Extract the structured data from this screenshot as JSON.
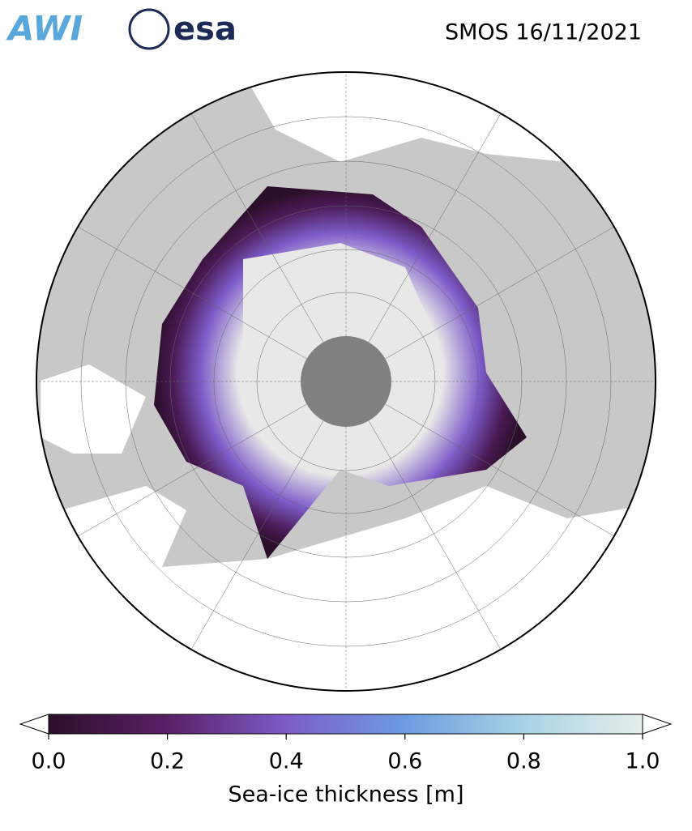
{
  "logos": {
    "awi": "AWI",
    "esa": "esa"
  },
  "header": {
    "title": "SMOS 16/11/2021"
  },
  "colorbar": {
    "label": "Sea-ice thickness [m]",
    "lim": [
      0,
      1
    ],
    "ticks": [
      {
        "value": 0,
        "label": "0.0"
      },
      {
        "value": 0.2,
        "label": "0.2"
      },
      {
        "value": 0.4,
        "label": "0.4"
      },
      {
        "value": 0.6,
        "label": "0.6"
      },
      {
        "value": 0.8,
        "label": "0.8"
      },
      {
        "value": 1,
        "label": "1.0"
      }
    ],
    "colors": [
      "#2b0f2a",
      "#5a1f66",
      "#7d5cc9",
      "#6d9ce2",
      "#a8d3e5",
      "#e6eeea"
    ]
  }
}
